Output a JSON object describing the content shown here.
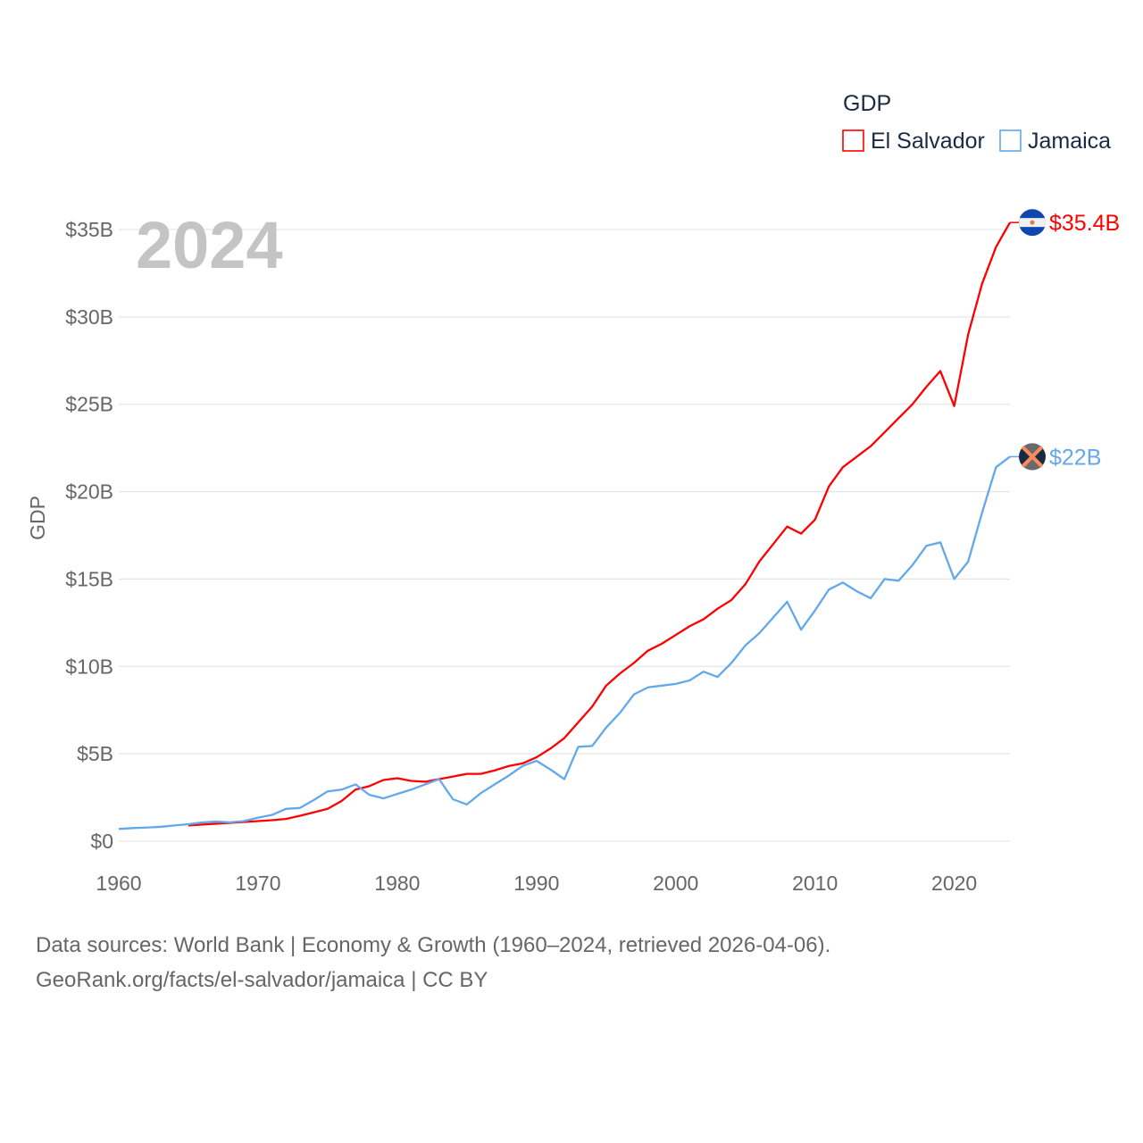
{
  "chart_data": {
    "type": "line",
    "title": "GDP",
    "ylabel": "GDP",
    "xlabel": "",
    "year_watermark": "2024",
    "xlim": [
      1960,
      2024
    ],
    "ylim": [
      0,
      35
    ],
    "x_ticks": [
      1960,
      1970,
      1980,
      1990,
      2000,
      2010,
      2020
    ],
    "y_ticks": [
      {
        "v": 0,
        "label": "$0"
      },
      {
        "v": 5,
        "label": "$5B"
      },
      {
        "v": 10,
        "label": "$10B"
      },
      {
        "v": 15,
        "label": "$15B"
      },
      {
        "v": 20,
        "label": "$20B"
      },
      {
        "v": 25,
        "label": "$25B"
      },
      {
        "v": 30,
        "label": "$30B"
      },
      {
        "v": 35,
        "label": "$35B"
      }
    ],
    "grid": true,
    "legend_position": "top-right",
    "series": [
      {
        "name": "El Salvador",
        "color": "#ff0000",
        "end_label": "$35.4B",
        "flag": "el-salvador-flag",
        "start_year": 1965,
        "values": [
          0.9,
          0.95,
          1.0,
          1.05,
          1.1,
          1.15,
          1.2,
          1.27,
          1.45,
          1.65,
          1.85,
          2.3,
          2.95,
          3.15,
          3.5,
          3.6,
          3.45,
          3.4,
          3.55,
          3.7,
          3.85,
          3.85,
          4.05,
          4.3,
          4.45,
          4.8,
          5.3,
          5.9,
          6.8,
          7.7,
          8.9,
          9.6,
          10.2,
          10.9,
          11.3,
          11.8,
          12.3,
          12.7,
          13.3,
          13.8,
          14.7,
          16.0,
          17.0,
          18.0,
          17.6,
          18.4,
          20.3,
          21.4,
          22.0,
          22.6,
          23.4,
          24.2,
          25.0,
          26.0,
          26.9,
          24.9,
          29.0,
          31.9,
          34.0,
          35.4
        ]
      },
      {
        "name": "Jamaica",
        "color": "#62a8ea",
        "end_label": "$22B",
        "flag": "jamaica-flag",
        "start_year": 1960,
        "values": [
          0.7,
          0.75,
          0.78,
          0.82,
          0.9,
          0.97,
          1.07,
          1.12,
          1.08,
          1.15,
          1.35,
          1.5,
          1.85,
          1.9,
          2.35,
          2.85,
          2.95,
          3.25,
          2.65,
          2.45,
          2.7,
          2.95,
          3.25,
          3.55,
          2.4,
          2.1,
          2.75,
          3.25,
          3.75,
          4.3,
          4.6,
          4.1,
          3.55,
          5.4,
          5.45,
          6.5,
          7.35,
          8.4,
          8.8,
          8.9,
          9.0,
          9.2,
          9.7,
          9.4,
          10.2,
          11.2,
          11.9,
          12.8,
          13.7,
          12.1,
          13.2,
          14.4,
          14.8,
          14.3,
          13.9,
          15.0,
          14.9,
          15.8,
          16.9,
          17.1,
          15.0,
          16.0,
          18.8,
          21.4,
          22.0
        ]
      }
    ]
  },
  "footer": {
    "line1": "Data sources: World Bank | Economy & Growth (1960–2024, retrieved 2026-04-06).",
    "line2": "GeoRank.org/facts/el-salvador/jamaica | CC BY"
  }
}
